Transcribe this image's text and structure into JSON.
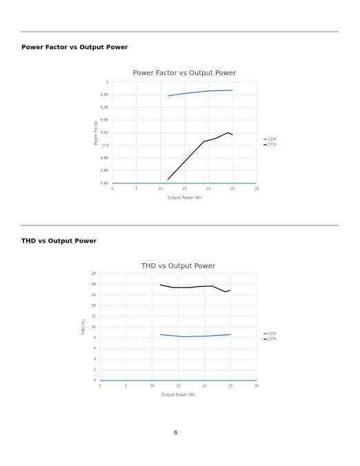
{
  "sections": [
    {
      "heading": "Power Factor vs Output Power"
    },
    {
      "heading": "THD vs Output Power"
    }
  ],
  "page_number": "6",
  "chart_data": [
    {
      "type": "line",
      "title": "Power Factor vs Output Power",
      "x_label": "Output Power (W)",
      "y_label": "Power Factor",
      "xlim": [
        0,
        30
      ],
      "xticks": [
        0,
        5,
        10,
        15,
        20,
        25,
        30
      ],
      "ylim": [
        0.84,
        1
      ],
      "yticks": [
        0.84,
        0.86,
        0.88,
        0.9,
        0.92,
        0.94,
        0.96,
        0.98,
        1
      ],
      "grid": true,
      "legend": "right",
      "series": [
        {
          "name": "120V",
          "color": "#2e6fa7",
          "x": [
            11.5,
            15,
            20,
            25
          ],
          "values": [
            0.978,
            0.982,
            0.986,
            0.987
          ]
        },
        {
          "name": "277V",
          "color": "#000000",
          "x": [
            11.5,
            19,
            21.5,
            24,
            25
          ],
          "values": [
            0.846,
            0.906,
            0.911,
            0.92,
            0.917
          ]
        }
      ]
    },
    {
      "type": "line",
      "title": "THD vs Output Power",
      "x_label": "Output Power (W)",
      "y_label": "THD (%)",
      "xlim": [
        0,
        30
      ],
      "xticks": [
        0,
        5,
        10,
        15,
        20,
        25,
        30
      ],
      "ylim": [
        0,
        20
      ],
      "yticks": [
        0,
        2,
        4,
        6,
        8,
        10,
        12,
        14,
        16,
        18,
        20
      ],
      "grid": true,
      "legend": "right",
      "series": [
        {
          "name": "120V",
          "color": "#2e6fa7",
          "x": [
            11.5,
            16,
            20,
            25
          ],
          "values": [
            8.6,
            8.2,
            8.3,
            8.6
          ]
        },
        {
          "name": "277V",
          "color": "#000000",
          "x": [
            11.5,
            14,
            17,
            19,
            21.5,
            24,
            25
          ],
          "values": [
            17.9,
            17.4,
            17.4,
            17.6,
            17.7,
            16.6,
            16.9
          ]
        }
      ]
    }
  ]
}
